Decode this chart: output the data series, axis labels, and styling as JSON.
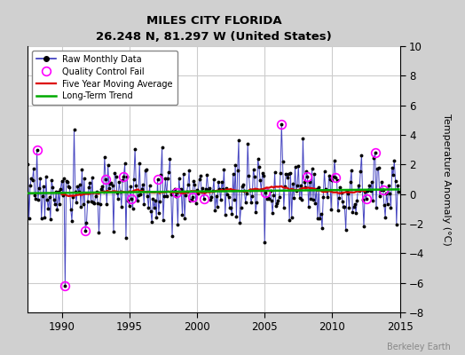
{
  "title": "MILES CITY FLORIDA",
  "subtitle": "26.248 N, 81.297 W (United States)",
  "ylabel": "Temperature Anomaly (°C)",
  "watermark": "Berkeley Earth",
  "xlim": [
    1987.5,
    2015.0
  ],
  "ylim": [
    -8,
    10
  ],
  "yticks": [
    -8,
    -6,
    -4,
    -2,
    0,
    2,
    4,
    6,
    8,
    10
  ],
  "xticks": [
    1990,
    1995,
    2000,
    2005,
    2010,
    2015
  ],
  "fig_bg_color": "#d0d0d0",
  "plot_bg_color": "#ffffff",
  "raw_line_color": "#3333bb",
  "raw_marker_color": "#000000",
  "moving_avg_color": "#dd0000",
  "trend_color": "#00aa00",
  "qc_fail_color": "#ff00ff",
  "grid_color": "#cccccc",
  "seed": 17
}
